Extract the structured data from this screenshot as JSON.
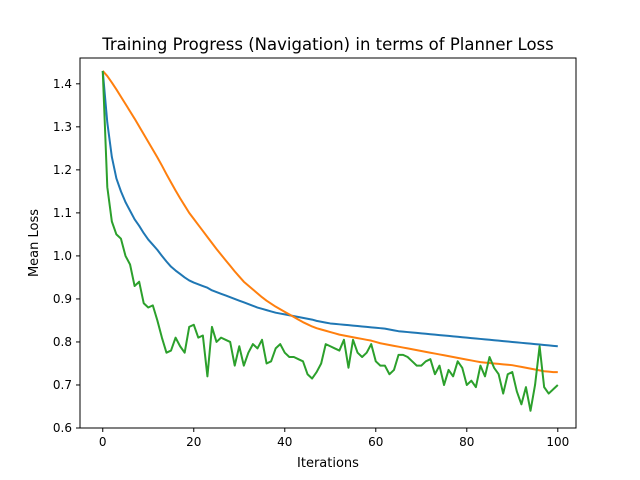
{
  "chart_data": {
    "type": "line",
    "title": "Training Progress (Navigation) in terms of Planner Loss",
    "xlabel": "Iterations",
    "ylabel": "Mean Loss",
    "xlim": [
      -5,
      104
    ],
    "ylim": [
      0.6,
      1.46
    ],
    "xticks": [
      0,
      20,
      40,
      60,
      80,
      100
    ],
    "yticks": [
      0.6,
      0.7,
      0.8,
      0.9,
      1.0,
      1.1,
      1.2,
      1.3,
      1.4
    ],
    "xtick_labels": [
      "0",
      "20",
      "40",
      "60",
      "80",
      "100"
    ],
    "ytick_labels": [
      "0.6",
      "0.7",
      "0.8",
      "0.9",
      "1.0",
      "1.1",
      "1.2",
      "1.3",
      "1.4"
    ],
    "grid": false,
    "legend": "none",
    "series": [
      {
        "color": "#1f77b4",
        "values": [
          1.43,
          1.31,
          1.23,
          1.18,
          1.15,
          1.125,
          1.105,
          1.085,
          1.07,
          1.053,
          1.038,
          1.026,
          1.014,
          1.0,
          0.987,
          0.975,
          0.966,
          0.958,
          0.95,
          0.943,
          0.938,
          0.934,
          0.93,
          0.926,
          0.92,
          0.916,
          0.912,
          0.908,
          0.904,
          0.9,
          0.896,
          0.892,
          0.888,
          0.884,
          0.88,
          0.877,
          0.874,
          0.871,
          0.868,
          0.866,
          0.864,
          0.862,
          0.86,
          0.858,
          0.856,
          0.854,
          0.852,
          0.849,
          0.847,
          0.845,
          0.843,
          0.842,
          0.841,
          0.84,
          0.839,
          0.838,
          0.837,
          0.836,
          0.835,
          0.834,
          0.833,
          0.832,
          0.831,
          0.829,
          0.827,
          0.825,
          0.824,
          0.823,
          0.822,
          0.821,
          0.82,
          0.819,
          0.818,
          0.817,
          0.816,
          0.815,
          0.814,
          0.813,
          0.812,
          0.811,
          0.81,
          0.809,
          0.808,
          0.807,
          0.806,
          0.805,
          0.804,
          0.803,
          0.802,
          0.801,
          0.8,
          0.799,
          0.798,
          0.797,
          0.796,
          0.795,
          0.794,
          0.793,
          0.792,
          0.791,
          0.79
        ]
      },
      {
        "color": "#ff7f0e",
        "values": [
          1.43,
          1.418,
          1.403,
          1.387,
          1.37,
          1.353,
          1.336,
          1.319,
          1.301,
          1.283,
          1.265,
          1.247,
          1.229,
          1.21,
          1.19,
          1.171,
          1.152,
          1.134,
          1.117,
          1.1,
          1.086,
          1.072,
          1.058,
          1.044,
          1.03,
          1.016,
          1.003,
          0.99,
          0.977,
          0.964,
          0.952,
          0.94,
          0.931,
          0.922,
          0.913,
          0.904,
          0.896,
          0.889,
          0.882,
          0.876,
          0.87,
          0.864,
          0.858,
          0.852,
          0.846,
          0.841,
          0.836,
          0.832,
          0.829,
          0.826,
          0.823,
          0.82,
          0.817,
          0.815,
          0.813,
          0.811,
          0.809,
          0.807,
          0.805,
          0.803,
          0.8,
          0.797,
          0.795,
          0.793,
          0.791,
          0.789,
          0.787,
          0.785,
          0.783,
          0.781,
          0.779,
          0.777,
          0.775,
          0.773,
          0.771,
          0.769,
          0.767,
          0.765,
          0.763,
          0.761,
          0.759,
          0.757,
          0.755,
          0.753,
          0.752,
          0.751,
          0.75,
          0.749,
          0.748,
          0.747,
          0.746,
          0.744,
          0.742,
          0.74,
          0.738,
          0.736,
          0.734,
          0.732,
          0.731,
          0.73,
          0.73
        ]
      },
      {
        "color": "#2ca02c",
        "values": [
          1.43,
          1.16,
          1.08,
          1.05,
          1.04,
          1.0,
          0.98,
          0.93,
          0.94,
          0.89,
          0.88,
          0.885,
          0.85,
          0.81,
          0.775,
          0.78,
          0.81,
          0.79,
          0.775,
          0.835,
          0.84,
          0.81,
          0.815,
          0.72,
          0.835,
          0.8,
          0.81,
          0.805,
          0.8,
          0.745,
          0.79,
          0.745,
          0.775,
          0.795,
          0.785,
          0.805,
          0.75,
          0.755,
          0.785,
          0.795,
          0.775,
          0.765,
          0.765,
          0.76,
          0.755,
          0.725,
          0.715,
          0.73,
          0.75,
          0.795,
          0.79,
          0.785,
          0.78,
          0.805,
          0.74,
          0.805,
          0.775,
          0.765,
          0.775,
          0.795,
          0.755,
          0.745,
          0.745,
          0.725,
          0.735,
          0.77,
          0.77,
          0.765,
          0.755,
          0.745,
          0.745,
          0.755,
          0.76,
          0.725,
          0.745,
          0.7,
          0.735,
          0.72,
          0.755,
          0.74,
          0.7,
          0.71,
          0.695,
          0.745,
          0.72,
          0.765,
          0.74,
          0.725,
          0.68,
          0.725,
          0.73,
          0.685,
          0.655,
          0.695,
          0.64,
          0.7,
          0.79,
          0.695,
          0.68,
          0.69,
          0.7
        ]
      }
    ]
  }
}
